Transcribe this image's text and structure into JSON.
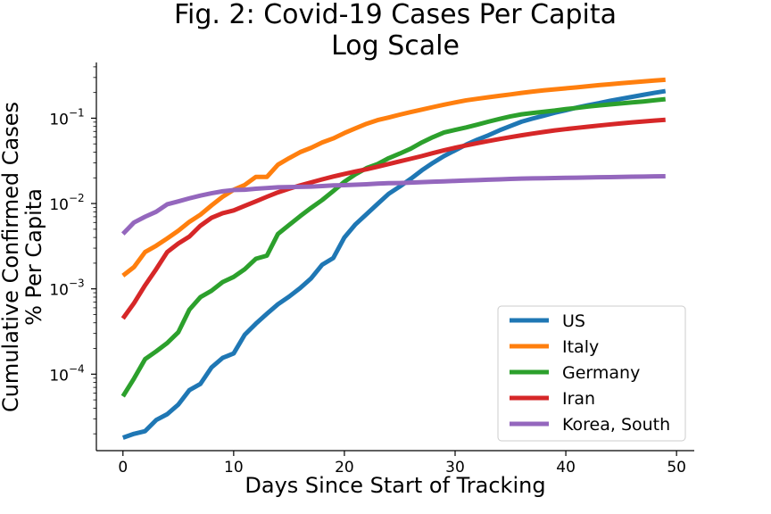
{
  "chart_data": {
    "type": "line",
    "title": "Fig. 2: Covid-19 Cases Per Capita",
    "subtitle": "Log Scale",
    "xlabel": "Days Since Start of Tracking",
    "ylabel": "Cumulative Confirmed Cases",
    "ylabel2": "% Per Capita",
    "yscale": "log",
    "xlim": [
      -2.4,
      51.6
    ],
    "ylim": [
      1.27e-05,
      0.45
    ],
    "x_ticks": [
      0,
      10,
      20,
      30,
      40,
      50
    ],
    "x_tick_labels": [
      "0",
      "10",
      "20",
      "30",
      "40",
      "50"
    ],
    "y_ticks": [
      0.0001,
      0.001,
      0.01,
      0.1
    ],
    "y_tick_labels": [
      {
        "base": "10",
        "exp": "−4"
      },
      {
        "base": "10",
        "exp": "−3"
      },
      {
        "base": "10",
        "exp": "−2"
      },
      {
        "base": "10",
        "exp": "−1"
      }
    ],
    "grid": false,
    "legend_position": "lower right",
    "series": [
      {
        "name": "US",
        "color": "#1f77b4",
        "points": [
          [
            0,
            1.8e-05
          ],
          [
            1,
            2e-05
          ],
          [
            2,
            2.15e-05
          ],
          [
            3,
            2.9e-05
          ],
          [
            4,
            3.4e-05
          ],
          [
            5,
            4.4e-05
          ],
          [
            6,
            6.5e-05
          ],
          [
            7,
            7.7e-05
          ],
          [
            8,
            0.00012
          ],
          [
            9,
            0.000155
          ],
          [
            10,
            0.000175
          ],
          [
            11,
            0.00029
          ],
          [
            12,
            0.00039
          ],
          [
            13,
            0.00051
          ],
          [
            14,
            0.00066
          ],
          [
            15,
            0.00081
          ],
          [
            16,
            0.00102
          ],
          [
            17,
            0.00133
          ],
          [
            18,
            0.00192
          ],
          [
            19,
            0.0023
          ],
          [
            20,
            0.004
          ],
          [
            21,
            0.0057
          ],
          [
            22,
            0.0075
          ],
          [
            23,
            0.0099
          ],
          [
            24,
            0.013
          ],
          [
            25,
            0.0158
          ],
          [
            26,
            0.0195
          ],
          [
            27,
            0.0245
          ],
          [
            28,
            0.03
          ],
          [
            29,
            0.036
          ],
          [
            30,
            0.042
          ],
          [
            31,
            0.049
          ],
          [
            32,
            0.056
          ],
          [
            33,
            0.063
          ],
          [
            34,
            0.072
          ],
          [
            35,
            0.081
          ],
          [
            36,
            0.091
          ],
          [
            37,
            0.099
          ],
          [
            38,
            0.107
          ],
          [
            39,
            0.116
          ],
          [
            40,
            0.124
          ],
          [
            41,
            0.133
          ],
          [
            42,
            0.142
          ],
          [
            43,
            0.15
          ],
          [
            44,
            0.16
          ],
          [
            45,
            0.169
          ],
          [
            46,
            0.178
          ],
          [
            47,
            0.188
          ],
          [
            48,
            0.198
          ],
          [
            49,
            0.208
          ]
        ]
      },
      {
        "name": "Italy",
        "color": "#ff7f0e",
        "points": [
          [
            0,
            0.00143
          ],
          [
            1,
            0.0018
          ],
          [
            2,
            0.0027
          ],
          [
            3,
            0.0032
          ],
          [
            4,
            0.0039
          ],
          [
            5,
            0.0048
          ],
          [
            6,
            0.0061
          ],
          [
            7,
            0.0074
          ],
          [
            8,
            0.0095
          ],
          [
            9,
            0.012
          ],
          [
            10,
            0.0145
          ],
          [
            11,
            0.0165
          ],
          [
            12,
            0.0205
          ],
          [
            13,
            0.0205
          ],
          [
            14,
            0.0285
          ],
          [
            15,
            0.034
          ],
          [
            16,
            0.04
          ],
          [
            17,
            0.045
          ],
          [
            18,
            0.052
          ],
          [
            19,
            0.058
          ],
          [
            20,
            0.067
          ],
          [
            21,
            0.076
          ],
          [
            22,
            0.086
          ],
          [
            23,
            0.095
          ],
          [
            24,
            0.102
          ],
          [
            25,
            0.11
          ],
          [
            26,
            0.118
          ],
          [
            27,
            0.126
          ],
          [
            28,
            0.135
          ],
          [
            29,
            0.144
          ],
          [
            30,
            0.153
          ],
          [
            31,
            0.162
          ],
          [
            32,
            0.169
          ],
          [
            33,
            0.176
          ],
          [
            34,
            0.183
          ],
          [
            35,
            0.19
          ],
          [
            36,
            0.198
          ],
          [
            37,
            0.205
          ],
          [
            38,
            0.212
          ],
          [
            39,
            0.218
          ],
          [
            40,
            0.224
          ],
          [
            41,
            0.23
          ],
          [
            42,
            0.237
          ],
          [
            43,
            0.244
          ],
          [
            44,
            0.25
          ],
          [
            45,
            0.257
          ],
          [
            46,
            0.263
          ],
          [
            47,
            0.27
          ],
          [
            48,
            0.276
          ],
          [
            49,
            0.282
          ]
        ]
      },
      {
        "name": "Germany",
        "color": "#2ca02c",
        "points": [
          [
            0,
            5.5e-05
          ],
          [
            1,
            8.9e-05
          ],
          [
            2,
            0.00015
          ],
          [
            3,
            0.000185
          ],
          [
            4,
            0.000232
          ],
          [
            5,
            0.00031
          ],
          [
            6,
            0.00057
          ],
          [
            7,
            0.0008
          ],
          [
            8,
            0.00095
          ],
          [
            9,
            0.0012
          ],
          [
            10,
            0.00138
          ],
          [
            11,
            0.0017
          ],
          [
            12,
            0.00225
          ],
          [
            13,
            0.00245
          ],
          [
            14,
            0.0044
          ],
          [
            15,
            0.0056
          ],
          [
            16,
            0.0071
          ],
          [
            17,
            0.0089
          ],
          [
            18,
            0.011
          ],
          [
            19,
            0.014
          ],
          [
            20,
            0.018
          ],
          [
            21,
            0.022
          ],
          [
            22,
            0.026
          ],
          [
            23,
            0.029
          ],
          [
            24,
            0.034
          ],
          [
            25,
            0.0385
          ],
          [
            26,
            0.044
          ],
          [
            27,
            0.052
          ],
          [
            28,
            0.06
          ],
          [
            29,
            0.068
          ],
          [
            30,
            0.073
          ],
          [
            31,
            0.078
          ],
          [
            32,
            0.084
          ],
          [
            33,
            0.091
          ],
          [
            34,
            0.098
          ],
          [
            35,
            0.105
          ],
          [
            36,
            0.111
          ],
          [
            37,
            0.115
          ],
          [
            38,
            0.119
          ],
          [
            39,
            0.123
          ],
          [
            40,
            0.128
          ],
          [
            41,
            0.132
          ],
          [
            42,
            0.137
          ],
          [
            43,
            0.141
          ],
          [
            44,
            0.145
          ],
          [
            45,
            0.149
          ],
          [
            46,
            0.153
          ],
          [
            47,
            0.157
          ],
          [
            48,
            0.162
          ],
          [
            49,
            0.167
          ]
        ]
      },
      {
        "name": "Iran",
        "color": "#d62728",
        "points": [
          [
            0,
            0.00045
          ],
          [
            1,
            0.00068
          ],
          [
            2,
            0.0011
          ],
          [
            3,
            0.0017
          ],
          [
            4,
            0.0027
          ],
          [
            5,
            0.0034
          ],
          [
            6,
            0.0041
          ],
          [
            7,
            0.0055
          ],
          [
            8,
            0.0068
          ],
          [
            9,
            0.0077
          ],
          [
            10,
            0.0083
          ],
          [
            11,
            0.0094
          ],
          [
            12,
            0.0106
          ],
          [
            13,
            0.012
          ],
          [
            14,
            0.0135
          ],
          [
            15,
            0.0149
          ],
          [
            16,
            0.0163
          ],
          [
            17,
            0.0177
          ],
          [
            18,
            0.0192
          ],
          [
            19,
            0.0207
          ],
          [
            20,
            0.0222
          ],
          [
            21,
            0.0237
          ],
          [
            22,
            0.0252
          ],
          [
            23,
            0.027
          ],
          [
            24,
            0.029
          ],
          [
            25,
            0.0312
          ],
          [
            26,
            0.0335
          ],
          [
            27,
            0.036
          ],
          [
            28,
            0.039
          ],
          [
            29,
            0.042
          ],
          [
            30,
            0.045
          ],
          [
            31,
            0.048
          ],
          [
            32,
            0.051
          ],
          [
            33,
            0.054
          ],
          [
            34,
            0.057
          ],
          [
            35,
            0.06
          ],
          [
            36,
            0.063
          ],
          [
            37,
            0.066
          ],
          [
            38,
            0.069
          ],
          [
            39,
            0.072
          ],
          [
            40,
            0.0745
          ],
          [
            41,
            0.077
          ],
          [
            42,
            0.0795
          ],
          [
            43,
            0.082
          ],
          [
            44,
            0.0845
          ],
          [
            45,
            0.087
          ],
          [
            46,
            0.0893
          ],
          [
            47,
            0.0915
          ],
          [
            48,
            0.0937
          ],
          [
            49,
            0.0958
          ]
        ]
      },
      {
        "name": "Korea, South",
        "color": "#9467bd",
        "points": [
          [
            0,
            0.0044
          ],
          [
            1,
            0.006
          ],
          [
            2,
            0.007
          ],
          [
            3,
            0.008
          ],
          [
            4,
            0.0098
          ],
          [
            5,
            0.0106
          ],
          [
            6,
            0.0115
          ],
          [
            7,
            0.0124
          ],
          [
            8,
            0.0132
          ],
          [
            9,
            0.0139
          ],
          [
            10,
            0.0144
          ],
          [
            11,
            0.0145
          ],
          [
            12,
            0.0149
          ],
          [
            13,
            0.0152
          ],
          [
            14,
            0.0155
          ],
          [
            15,
            0.0156
          ],
          [
            16,
            0.0157
          ],
          [
            17,
            0.0158
          ],
          [
            18,
            0.016
          ],
          [
            19,
            0.0163
          ],
          [
            20,
            0.0164
          ],
          [
            21,
            0.0166
          ],
          [
            22,
            0.0168
          ],
          [
            23,
            0.0171
          ],
          [
            24,
            0.0173
          ],
          [
            25,
            0.0174
          ],
          [
            26,
            0.0176
          ],
          [
            27,
            0.0178
          ],
          [
            28,
            0.018
          ],
          [
            29,
            0.0182
          ],
          [
            30,
            0.0184
          ],
          [
            31,
            0.0186
          ],
          [
            32,
            0.0188
          ],
          [
            33,
            0.019
          ],
          [
            34,
            0.0192
          ],
          [
            35,
            0.0194
          ],
          [
            36,
            0.0196
          ],
          [
            37,
            0.0197
          ],
          [
            38,
            0.0198
          ],
          [
            39,
            0.0199
          ],
          [
            40,
            0.02
          ],
          [
            41,
            0.0201
          ],
          [
            42,
            0.0202
          ],
          [
            43,
            0.0203
          ],
          [
            44,
            0.0204
          ],
          [
            45,
            0.0205
          ],
          [
            46,
            0.0206
          ],
          [
            47,
            0.0207
          ],
          [
            48,
            0.0208
          ],
          [
            49,
            0.0209
          ]
        ]
      }
    ]
  }
}
